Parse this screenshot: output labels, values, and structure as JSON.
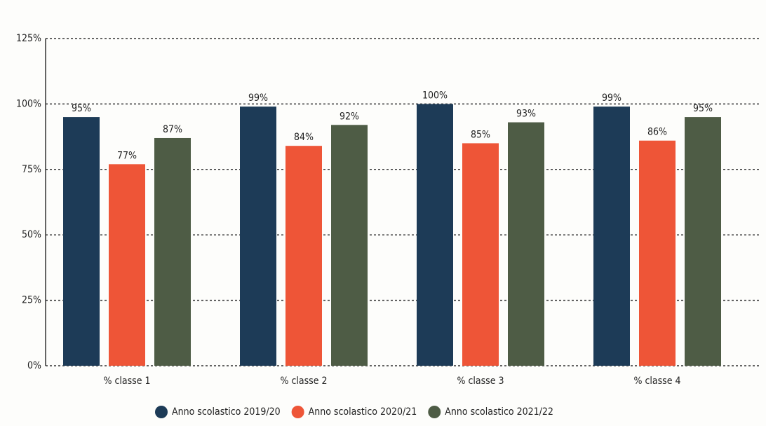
{
  "chart_data": {
    "type": "bar",
    "categories": [
      "% classe 1",
      "% classe 2",
      "% classe 3",
      "% classe 4"
    ],
    "series": [
      {
        "name": "Anno scolastico 2019/20",
        "color": "#1d3b57",
        "values": [
          95,
          99,
          100,
          99
        ],
        "value_labels": [
          "95%",
          "99%",
          "100%",
          "99%"
        ]
      },
      {
        "name": "Anno scolastico 2020/21",
        "color": "#ee5537",
        "values": [
          77,
          84,
          85,
          86
        ],
        "value_labels": [
          "77%",
          "84%",
          "85%",
          "86%"
        ]
      },
      {
        "name": "Anno scolastico 2021/22",
        "color": "#4e5c45",
        "values": [
          87,
          92,
          93,
          95
        ],
        "value_labels": [
          "87%",
          "92%",
          "93%",
          "95%"
        ]
      }
    ],
    "ylim": [
      0,
      125
    ],
    "yticks": [
      {
        "value": 0,
        "label": "0%"
      },
      {
        "value": 25,
        "label": "25%"
      },
      {
        "value": 50,
        "label": "50%"
      },
      {
        "value": 75,
        "label": "75%"
      },
      {
        "value": 100,
        "label": "100%"
      },
      {
        "value": 125,
        "label": "125%"
      }
    ],
    "grid": true,
    "legend": "bottom"
  }
}
